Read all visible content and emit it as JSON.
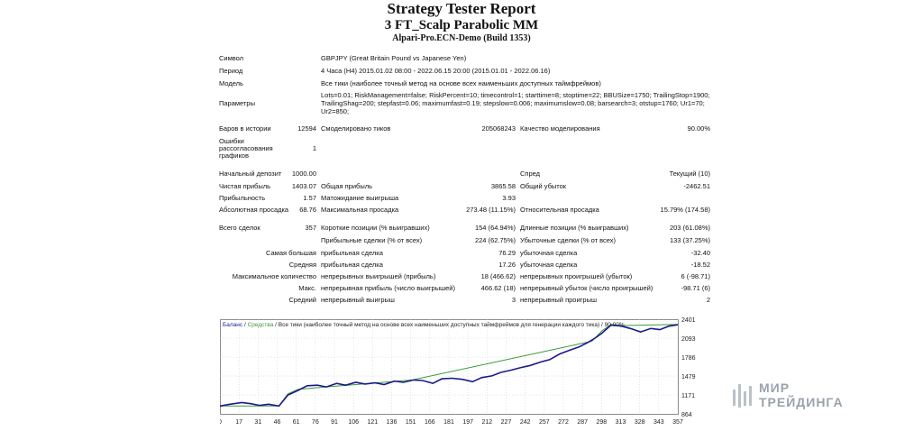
{
  "header": {
    "title": "Strategy Tester Report",
    "expert": "3 FT_Scalp Parabolic MM",
    "server": "Alpari-Pro.ECN-Demo (Build 1353)"
  },
  "report": {
    "symbol_label": "Символ",
    "symbol_value": "GBPJPY (Great Britain Pound vs Japanese Yen)",
    "period_label": "Период",
    "period_value": "4 Часа (H4) 2015.01.02 08:00 - 2022.06.15 20:00 (2015.01.01 - 2022.06.16)",
    "model_label": "Модель",
    "model_value": "Все тики (наиболее точный метод на основе всех наименьших доступных таймфреймов)",
    "params_label": "Параметры",
    "params_lines": [
      "Lots=0.01; RiskManagement=false; RiskPercent=10; timecontrol=1; starttime=8; stoptime=22; BBUSize=1750; TrailingStop=1900;",
      "TrailingShag=200; stepfast=0.06; maximumfast=0.19; stepslow=0.006; maximumslow=0.08; barsearch=3; otstup=1760; Ur1=70;",
      "Ur2=850;"
    ],
    "bars_label": "Баров в истории",
    "bars_value": "12594",
    "ticks_label": "Смоделировано тиков",
    "ticks_value": "205068243",
    "quality_label": "Качество моделирования",
    "quality_value": "90.00%",
    "errors_label_lines": [
      "Ошибки",
      "рассогласования",
      "графиков"
    ],
    "errors_value": "1",
    "deposit_label": "Начальный депозит",
    "deposit_value": "1000.00",
    "spread_label": "Спред",
    "spread_value": "Текущий (10)",
    "net_label": "Чистая прибыль",
    "net_value": "1403.07",
    "gross_profit_label": "Общая прибыль",
    "gross_profit_value": "3865.58",
    "gross_loss_label": "Общий убыток",
    "gross_loss_value": "-2462.51",
    "pf_label": "Прибыльность",
    "pf_value": "1.57",
    "expected_label": "Матожидание выигрыша",
    "expected_value": "3.93",
    "abs_dd_label": "Абсолютная просадка",
    "abs_dd_value": "68.76",
    "max_dd_label": "Максимальная просадка",
    "max_dd_value": "273.48 (11.15%)",
    "rel_dd_label": "Относительная просадка",
    "rel_dd_value": "15.79% (174.58)",
    "total_label": "Всего сделок",
    "total_value": "357",
    "short_label": "Короткие позиции (% выигравших)",
    "short_value": "154 (64.94%)",
    "long_label": "Длинные позиции (% выигравших)",
    "long_value": "203 (61.08%)",
    "profit_trades_label": "Прибыльные сделки (% от всех)",
    "profit_trades_value": "224 (62.75%)",
    "loss_trades_label": "Убыточные сделки (% от всех)",
    "loss_trades_value": "133 (37.25%)",
    "largest_label": "Самая большая",
    "largest_profit_label": "прибыльная сделка",
    "largest_profit_value": "76.29",
    "largest_loss_label": "убыточная сделка",
    "largest_loss_value": "-32.40",
    "average_label": "Средняя",
    "avg_profit_label": "прибыльная сделка",
    "avg_profit_value": "17.26",
    "avg_loss_label": "убыточная сделка",
    "avg_loss_value": "-18.52",
    "maxcount_label": "Максимальное количество",
    "cons_wins_label": "непрерывных выигрышей (прибыль)",
    "cons_wins_value": "18 (466.62)",
    "cons_losses_label": "непрерывных проигрышей (убыток)",
    "cons_losses_value": "6 (-98.71)",
    "max_label": "Макс.",
    "cons_profit_label": "непрерывная прибыль (число выигрышей)",
    "cons_profit_value": "466.62 (18)",
    "cons_loss_label": "непрерывный убыток (число проигрышей)",
    "cons_loss_value": "-98.71 (6)",
    "avg2_label": "Средний",
    "avg_wins_label": "непрерывный выигрыш",
    "avg_wins_value": "3",
    "avg_losses_label": "непрерывный проигрыш",
    "avg_losses_value": "2"
  },
  "chart_data": {
    "type": "line",
    "legend": {
      "balance": "Баланс",
      "sep1": " / ",
      "equity": "Средства",
      "sep2": " / ",
      "caption": "Все тики (наиболее точный метод на основе всех наименьших доступных таймфреймов для генерации каждого тика)",
      "sep3": " / ",
      "quality": "90.00%"
    },
    "x_ticks": [
      "0",
      "17",
      "31",
      "46",
      "61",
      "76",
      "91",
      "106",
      "121",
      "136",
      "151",
      "166",
      "181",
      "197",
      "212",
      "227",
      "242",
      "257",
      "272",
      "287",
      "298",
      "313",
      "328",
      "343",
      "357"
    ],
    "y_ticks": [
      "2401",
      "2093",
      "1786",
      "1479",
      "1171",
      "864"
    ],
    "ylim": [
      864,
      2500
    ],
    "xlim": [
      0,
      357
    ],
    "colors": {
      "balance": "#1a1a8c",
      "equity": "#3c9a3c",
      "grid": "#c8c8c8"
    },
    "series": [
      {
        "name": "Баланс",
        "x": [
          0,
          8,
          17,
          24,
          31,
          38,
          46,
          53,
          61,
          68,
          76,
          83,
          91,
          98,
          106,
          113,
          121,
          128,
          136,
          143,
          151,
          158,
          166,
          173,
          181,
          189,
          197,
          204,
          212,
          219,
          227,
          234,
          242,
          250,
          257,
          265,
          272,
          280,
          287,
          293,
          298,
          305,
          313,
          320,
          328,
          336,
          343,
          350,
          357
        ],
        "values": [
          1000,
          1030,
          1060,
          1040,
          1010,
          1030,
          1000,
          1190,
          1270,
          1350,
          1360,
          1330,
          1390,
          1360,
          1410,
          1380,
          1400,
          1370,
          1430,
          1410,
          1450,
          1440,
          1390,
          1470,
          1480,
          1460,
          1420,
          1490,
          1520,
          1580,
          1620,
          1660,
          1700,
          1760,
          1800,
          1900,
          1960,
          2020,
          2100,
          2180,
          2260,
          2400,
          2380,
          2340,
          2280,
          2340,
          2320,
          2380,
          2403
        ]
      },
      {
        "name": "Средства",
        "x": [
          0,
          46,
          53,
          61,
          150,
          290,
          298,
          305,
          313,
          357
        ],
        "values": [
          1000,
          1000,
          1210,
          1290,
          1450,
          2120,
          2300,
          2410,
          2390,
          2410
        ]
      }
    ]
  },
  "watermark": {
    "line1": "МИР",
    "line2": "ТРЕЙДИНГА"
  }
}
